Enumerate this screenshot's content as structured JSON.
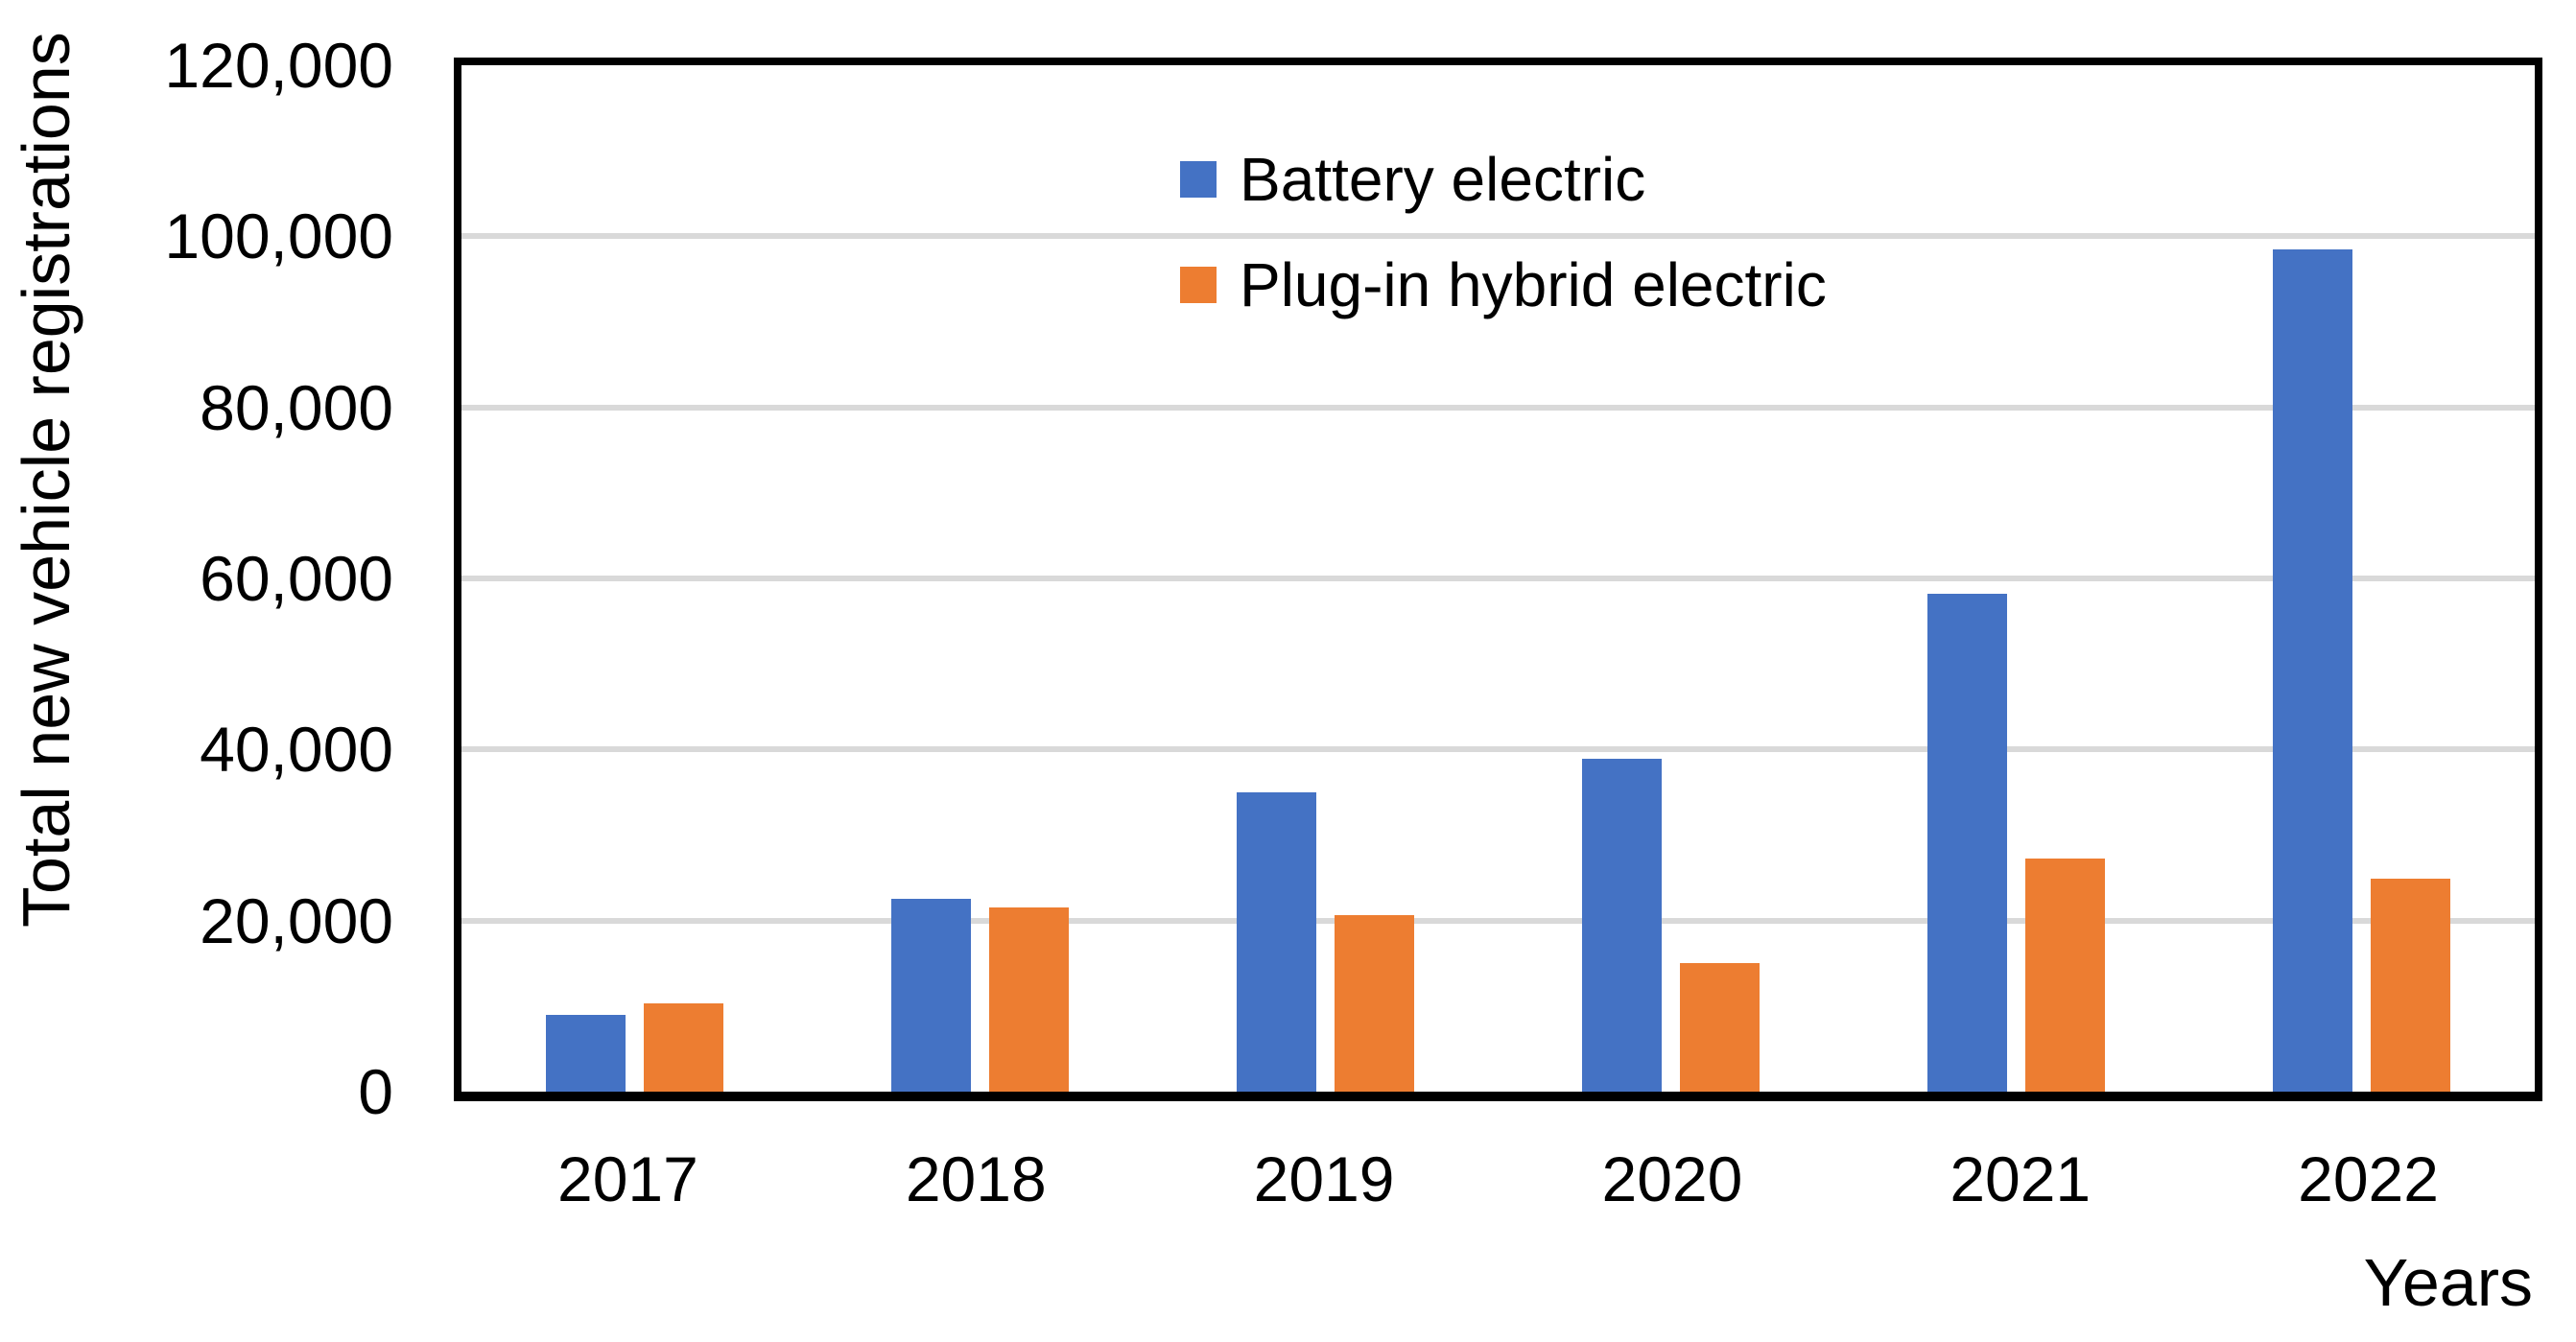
{
  "chart_data": {
    "type": "bar",
    "title": "",
    "xlabel": "Years",
    "ylabel": "Total new vehicle registrations",
    "categories": [
      "2017",
      "2018",
      "2019",
      "2020",
      "2021",
      "2022"
    ],
    "series": [
      {
        "name": "Battery electric",
        "color": "#4472C4",
        "values": [
          9000,
          22500,
          35000,
          38900,
          58200,
          98500
        ]
      },
      {
        "name": "Plug-in hybrid electric",
        "color": "#ED7D31",
        "values": [
          10300,
          21500,
          20600,
          15000,
          27300,
          24900
        ]
      }
    ],
    "ylim": [
      0,
      120000
    ],
    "yticks": [
      0,
      20000,
      40000,
      60000,
      80000,
      100000,
      120000
    ],
    "grid": true,
    "legend_position": "inside-top-center"
  },
  "colors": {
    "gridline": "#D9D9D9",
    "axis_border": "#000000",
    "text": "#000000",
    "background": "#FFFFFF"
  }
}
